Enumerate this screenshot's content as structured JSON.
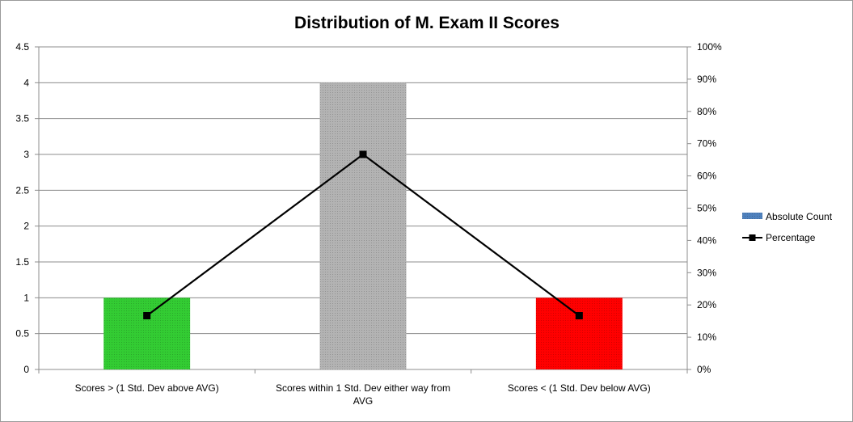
{
  "chart_data": {
    "type": "bar",
    "title": "Distribution of M. Exam II Scores",
    "categories": [
      "Scores > (1 Std. Dev above AVG)",
      "Scores within 1 Std. Dev either way from AVG",
      "Scores < (1 Std. Dev below AVG)"
    ],
    "category_lines": [
      [
        "Scores > (1 Std. Dev above AVG)"
      ],
      [
        "Scores within 1 Std. Dev either way from",
        "AVG"
      ],
      [
        "Scores < (1 Std. Dev below AVG)"
      ]
    ],
    "series": [
      {
        "name": "Absolute Count",
        "type": "bar",
        "axis": "left",
        "values": [
          1,
          4,
          1
        ],
        "colors": [
          "#33cc33",
          "#b3b3b3",
          "#ff0000"
        ]
      },
      {
        "name": "Percentage",
        "type": "line",
        "axis": "right",
        "values": [
          0.1667,
          0.6667,
          0.1667
        ],
        "color": "#000000"
      }
    ],
    "y_left": {
      "range": [
        0,
        4.5
      ],
      "ticks": [
        0,
        0.5,
        1,
        1.5,
        2,
        2.5,
        3,
        3.5,
        4,
        4.5
      ],
      "tick_labels": [
        "0",
        "0.5",
        "1",
        "1.5",
        "2",
        "2.5",
        "3",
        "3.5",
        "4",
        "4.5"
      ]
    },
    "y_right": {
      "range": [
        0,
        1
      ],
      "ticks": [
        0,
        0.1,
        0.2,
        0.3,
        0.4,
        0.5,
        0.6,
        0.7,
        0.8,
        0.9,
        1
      ],
      "tick_labels": [
        "0%",
        "10%",
        "20%",
        "30%",
        "40%",
        "50%",
        "60%",
        "70%",
        "80%",
        "90%",
        "100%"
      ]
    },
    "grid": true,
    "legend": "right",
    "legend_entries": [
      "Absolute Count",
      "Percentage"
    ],
    "legend_swatch_color": "#4f81bd"
  }
}
